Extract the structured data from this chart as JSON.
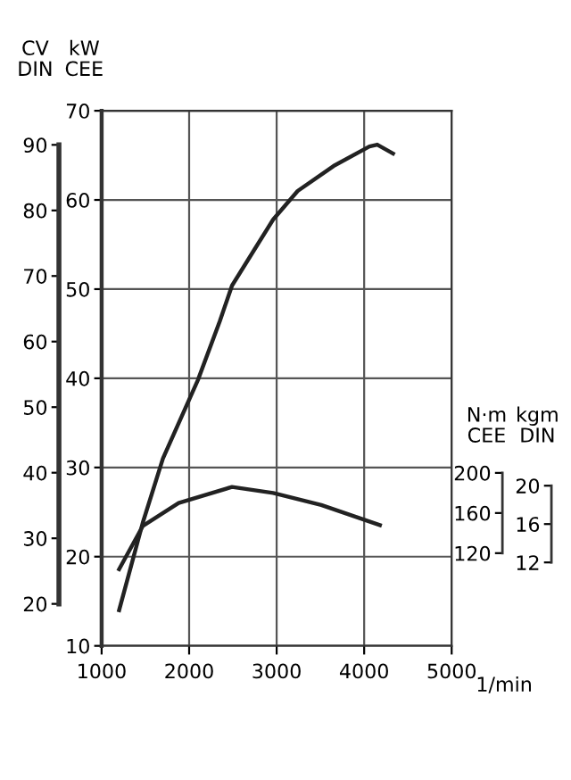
{
  "chart_data": [
    {
      "type": "line",
      "xlabel": "1/min",
      "ylabel": "kW\nCEE",
      "y2label": "CV\nDIN",
      "xlim": [
        1000,
        5000
      ],
      "xticks": [
        1000,
        2000,
        3000,
        4000,
        5000
      ],
      "ylim": [
        10,
        70
      ],
      "yticks": [
        10,
        20,
        30,
        40,
        50,
        60,
        70
      ],
      "y2lim": [
        13.6,
        95.2
      ],
      "y2ticks": [
        20,
        30,
        40,
        50,
        60,
        70,
        80,
        90
      ],
      "grid": true,
      "series": [
        {
          "color": "#222222",
          "x": [
            1200,
            1470,
            1700,
            2100,
            2350,
            2490,
            2750,
            2960,
            3240,
            3650,
            4060,
            4150,
            4330
          ],
          "values": [
            14,
            23.8,
            31,
            39.8,
            46.4,
            50.4,
            54.5,
            57.8,
            61,
            63.8,
            66,
            66.2,
            65.2
          ]
        }
      ]
    },
    {
      "type": "line",
      "ylabel": "N·m\nCEE",
      "y2label": "kgm\nDIN",
      "tick_labels": "y",
      "xlim": [
        1000,
        5000
      ],
      "ylim": [
        27.6,
        561
      ],
      "yticks": [
        120,
        160,
        200
      ],
      "y2lim": [
        3.3,
        59.1
      ],
      "y2ticks": [
        12,
        16,
        20
      ],
      "series": [
        {
          "color": "#222222",
          "x": [
            1200,
            1470,
            1880,
            2490,
            2960,
            3510,
            4180
          ],
          "values": [
            104,
            147,
            170,
            186,
            180,
            168,
            148
          ]
        }
      ]
    }
  ]
}
